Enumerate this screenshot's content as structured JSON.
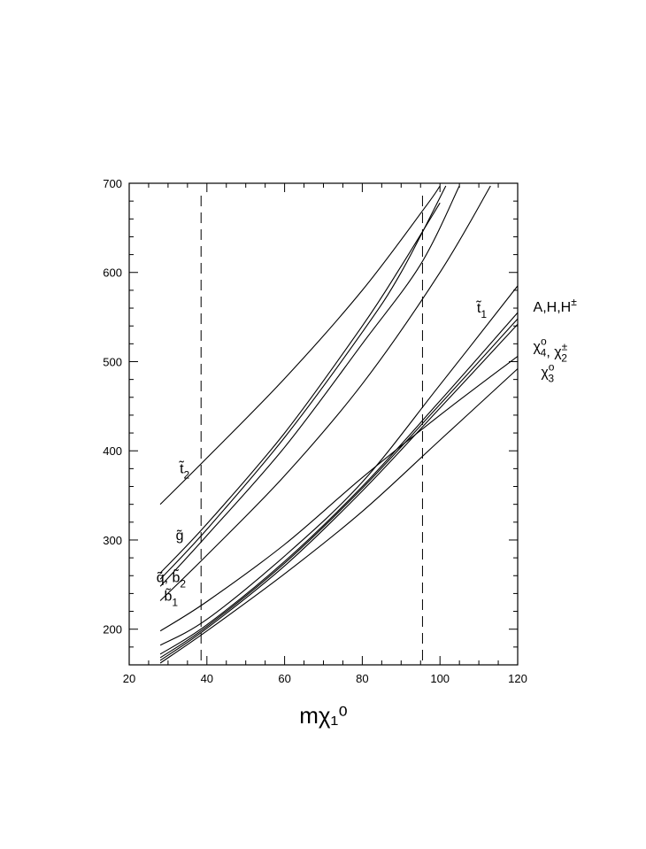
{
  "chart_data": {
    "type": "line",
    "title": "",
    "xlabel": "mχ₁⁰",
    "ylabel": "",
    "xlim": [
      20,
      120
    ],
    "ylim": [
      160,
      700
    ],
    "xticks": [
      20,
      40,
      60,
      80,
      100,
      120
    ],
    "yticks": [
      200,
      300,
      400,
      500,
      600,
      700
    ],
    "grid": false,
    "vertical_dashed_lines": [
      38.5,
      95.5
    ],
    "series": [
      {
        "x": [
          28,
          40,
          60,
          80,
          96,
          100
        ],
        "y": [
          340,
          392,
          481,
          580,
          672,
          697
        ]
      },
      {
        "x": [
          28,
          40,
          60,
          80,
          90,
          100
        ],
        "y": [
          263,
          318,
          420,
          540,
          607,
          678
        ]
      },
      {
        "x": [
          28,
          40,
          60,
          80,
          90,
          101.5
        ],
        "y": [
          256,
          312,
          415,
          533,
          600,
          697
        ]
      },
      {
        "x": [
          28,
          40,
          60,
          80,
          95,
          105
        ],
        "y": [
          248,
          305,
          404,
          520,
          609,
          697
        ]
      },
      {
        "x": [
          28,
          40,
          60,
          80,
          100,
          113
        ],
        "y": [
          232,
          283,
          372,
          475,
          600,
          697
        ]
      },
      {
        "x": [
          28,
          40,
          60,
          80,
          100,
          120
        ],
        "y": [
          198,
          231,
          295,
          370,
          440,
          506
        ]
      },
      {
        "x": [
          28,
          40,
          60,
          80,
          100,
          120
        ],
        "y": [
          182,
          211,
          282,
          365,
          474,
          585
        ]
      },
      {
        "x": [
          28,
          40,
          60,
          80,
          100,
          120
        ],
        "y": [
          172,
          205,
          276,
          360,
          456,
          555
        ]
      },
      {
        "x": [
          28,
          40,
          60,
          80,
          100,
          120
        ],
        "y": [
          168,
          203,
          274,
          358,
          452,
          548
        ]
      },
      {
        "x": [
          28,
          40,
          60,
          80,
          100,
          120
        ],
        "y": [
          165,
          201,
          271,
          355,
          448,
          542
        ]
      },
      {
        "x": [
          28,
          40,
          60,
          80,
          100,
          120
        ],
        "y": [
          162,
          198,
          262,
          332,
          412,
          492
        ]
      }
    ],
    "annotations": [
      {
        "text": "t̃",
        "sub": "2",
        "at": [
          33,
          375
        ]
      },
      {
        "text": "g̃",
        "sub": "",
        "at": [
          32,
          300
        ]
      },
      {
        "text": "q̃, b̃",
        "sub": "2",
        "at": [
          27,
          253
        ]
      },
      {
        "text": "b̃",
        "sub": "1",
        "at": [
          29,
          232
        ]
      },
      {
        "text": "t̃",
        "sub": "1",
        "at": [
          109.5,
          555
        ]
      },
      {
        "text": "A,H,H",
        "sup": "±",
        "at": [
          124,
          556
        ]
      },
      {
        "text": "χ",
        "sub": "4",
        "sup": "o",
        "extra": ", χ",
        "sub2": "2",
        "sup2": "±",
        "at": [
          124,
          512
        ]
      },
      {
        "text": "χ",
        "sub": "3",
        "sup": "o",
        "at": [
          126,
          483
        ]
      }
    ]
  }
}
